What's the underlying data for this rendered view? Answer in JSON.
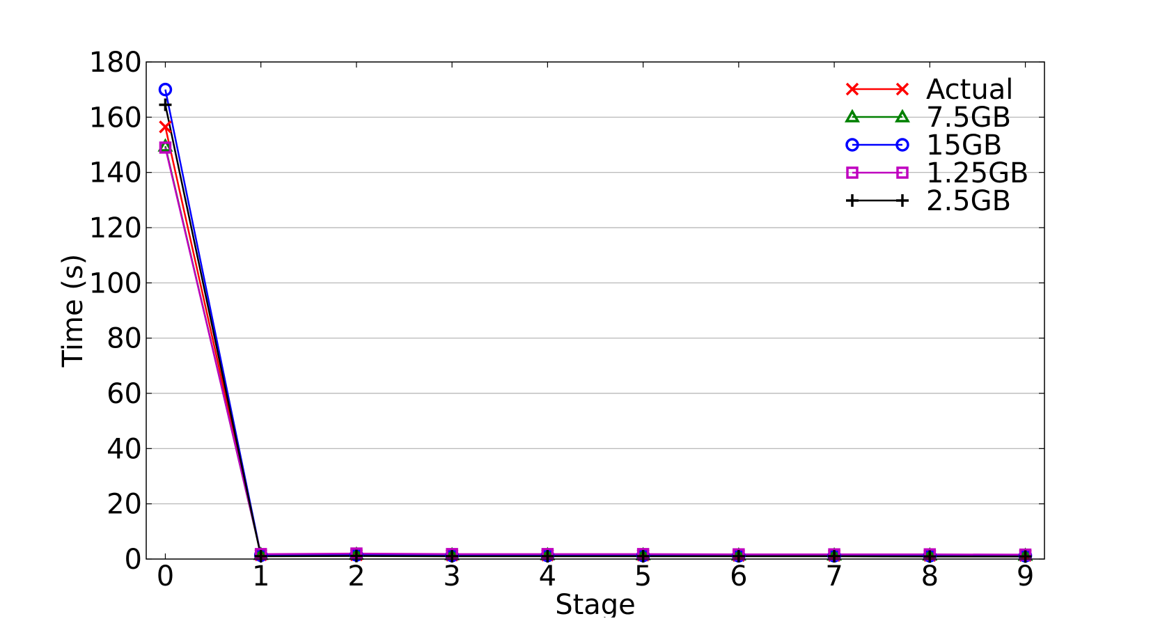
{
  "chart_data": {
    "type": "line",
    "title": "",
    "xlabel": "Stage",
    "ylabel": "Time (s)",
    "x": [
      0,
      1,
      2,
      3,
      4,
      5,
      6,
      7,
      8,
      9
    ],
    "xticks": [
      "0",
      "1",
      "2",
      "3",
      "4",
      "5",
      "6",
      "7",
      "8",
      "9"
    ],
    "yticks": [
      "0",
      "20",
      "40",
      "60",
      "80",
      "100",
      "120",
      "140",
      "160",
      "180"
    ],
    "xlim": [
      -0.2,
      9.2
    ],
    "ylim": [
      0,
      180
    ],
    "grid": "horizontal",
    "legend_position": "top-right",
    "series": [
      {
        "name": "Actual",
        "color": "#ff0000",
        "marker": "x",
        "values": [
          156.5,
          1.5,
          1.5,
          1.4,
          1.4,
          1.4,
          1.3,
          1.3,
          1.3,
          1.3
        ]
      },
      {
        "name": "7.5GB",
        "color": "#008000",
        "marker": "triangle",
        "values": [
          149.5,
          1.6,
          1.7,
          1.5,
          1.5,
          1.5,
          1.4,
          1.4,
          1.4,
          1.3
        ]
      },
      {
        "name": "15GB",
        "color": "#0000ff",
        "marker": "circle",
        "values": [
          170,
          1.4,
          1.5,
          1.3,
          1.3,
          1.3,
          1.2,
          1.2,
          1.2,
          1.2
        ]
      },
      {
        "name": "1.25GB",
        "color": "#bf00bf",
        "marker": "square",
        "values": [
          149,
          1.8,
          2.0,
          1.8,
          1.8,
          1.8,
          1.7,
          1.7,
          1.7,
          1.6
        ]
      },
      {
        "name": "2.5GB",
        "color": "#000000",
        "marker": "plus",
        "values": [
          164.5,
          1.0,
          1.1,
          1.0,
          1.0,
          1.0,
          1.0,
          1.0,
          0.9,
          0.9
        ]
      }
    ]
  }
}
